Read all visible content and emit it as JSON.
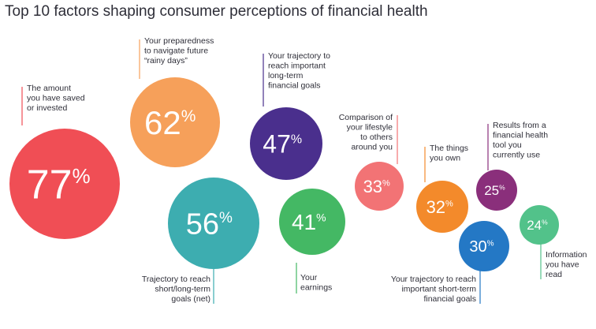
{
  "title": "Top 10 factors shaping consumer perceptions of financial health",
  "chart_data": {
    "type": "bubble",
    "title": "Top 10 factors shaping consumer perceptions of financial health",
    "unit": "%",
    "items": [
      {
        "label": [
          "The amount",
          "you have saved",
          "or invested"
        ],
        "value": 77,
        "color": "#f04e55"
      },
      {
        "label": [
          "Your preparedness",
          "to navigate future",
          "“rainy days”"
        ],
        "value": 62,
        "color": "#f6a05a"
      },
      {
        "label": [
          "Trajectory to reach",
          "short/long-term",
          "goals (net)"
        ],
        "value": 56,
        "color": "#3dadb0"
      },
      {
        "label": [
          "Your trajectory to",
          "reach important",
          "long-term",
          "financial goals"
        ],
        "value": 47,
        "color": "#4a2f8d"
      },
      {
        "label": [
          "Your",
          "earnings"
        ],
        "value": 41,
        "color": "#44b864"
      },
      {
        "label": [
          "Comparison of",
          "your lifestyle",
          "to others",
          "around you"
        ],
        "value": 33,
        "color": "#f27375"
      },
      {
        "label": [
          "The things",
          "you own"
        ],
        "value": 32,
        "color": "#f38a2b"
      },
      {
        "label": [
          "Your trajectory to reach",
          "important short-term",
          "financial goals"
        ],
        "value": 30,
        "color": "#2478c5"
      },
      {
        "label": [
          "Results from a",
          "financial health",
          "tool you",
          "currently use"
        ],
        "value": 25,
        "color": "#8a2f7b"
      },
      {
        "label": [
          "Information",
          "you have",
          "read"
        ],
        "value": 24,
        "color": "#52c28a"
      }
    ]
  }
}
